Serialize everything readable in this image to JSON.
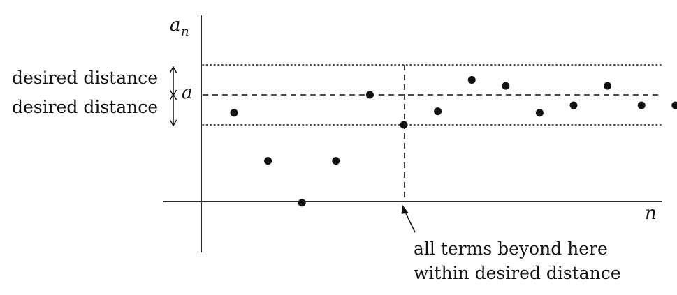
{
  "labels": {
    "y_axis": "a",
    "y_axis_sub": "n",
    "x_axis": "n",
    "limit": "a",
    "upper_distance": "desired distance",
    "lower_distance": "desired distance",
    "annotation_line1": "all terms beyond here",
    "annotation_line2": "within desired distance"
  },
  "sequence": {
    "limit_value": 0,
    "tolerance": 1,
    "cutoff_index": 6,
    "terms": [
      {
        "n": 1,
        "value": -0.6
      },
      {
        "n": 2,
        "value": -2.2
      },
      {
        "n": 3,
        "value": -3.6
      },
      {
        "n": 4,
        "value": -2.2
      },
      {
        "n": 5,
        "value": 0.0
      },
      {
        "n": 6,
        "value": -1.0
      },
      {
        "n": 7,
        "value": -0.55
      },
      {
        "n": 8,
        "value": 0.5
      },
      {
        "n": 9,
        "value": 0.3
      },
      {
        "n": 10,
        "value": -0.6
      },
      {
        "n": 11,
        "value": -0.35
      },
      {
        "n": 12,
        "value": 0.3
      },
      {
        "n": 13,
        "value": -0.35
      },
      {
        "n": 14,
        "value": -0.35
      }
    ]
  }
}
